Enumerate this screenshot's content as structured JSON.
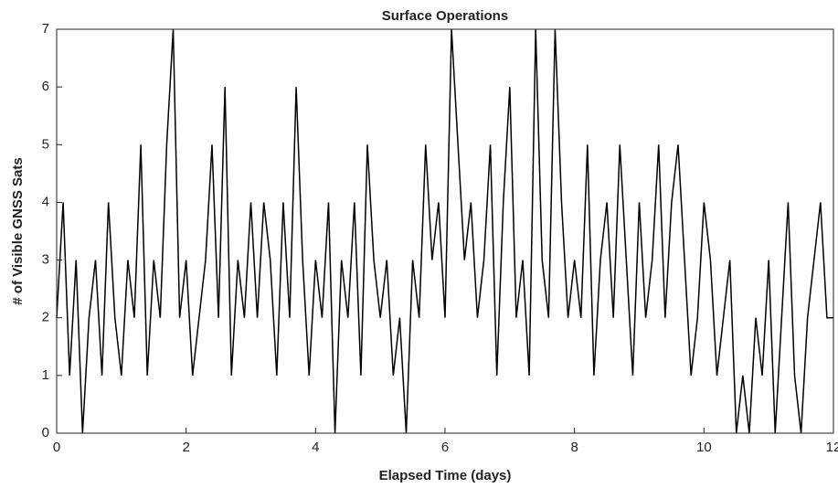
{
  "chart_data": {
    "type": "line",
    "title": "Surface Operations",
    "xlabel": "Elapsed Time (days)",
    "ylabel": "# of Visible GNSS Sats",
    "x": [
      0,
      0.1,
      0.2,
      0.3,
      0.4,
      0.5,
      0.6,
      0.7,
      0.8,
      0.9,
      1,
      1.1,
      1.2,
      1.3,
      1.4,
      1.5,
      1.6,
      1.7,
      1.8,
      1.9,
      2,
      2.1,
      2.2,
      2.3,
      2.4,
      2.5,
      2.6,
      2.7,
      2.8,
      2.9,
      3,
      3.1,
      3.2,
      3.3,
      3.4,
      3.5,
      3.6,
      3.7,
      3.8,
      3.9,
      4,
      4.1,
      4.2,
      4.3,
      4.4,
      4.5,
      4.6,
      4.7,
      4.8,
      4.9,
      5,
      5.1,
      5.2,
      5.3,
      5.4,
      5.5,
      5.6,
      5.7,
      5.8,
      5.9,
      6,
      6.1,
      6.2,
      6.3,
      6.4,
      6.5,
      6.6,
      6.7,
      6.8,
      6.9,
      7,
      7.1,
      7.2,
      7.3,
      7.4,
      7.5,
      7.6,
      7.7,
      7.8,
      7.9,
      8,
      8.1,
      8.2,
      8.3,
      8.4,
      8.5,
      8.6,
      8.7,
      8.8,
      8.9,
      9,
      9.1,
      9.2,
      9.3,
      9.4,
      9.5,
      9.6,
      9.7,
      9.8,
      9.9,
      10,
      10.1,
      10.2,
      10.3,
      10.4,
      10.5,
      10.6,
      10.7,
      10.8,
      10.9,
      11,
      11.1,
      11.2,
      11.3,
      11.4,
      11.5,
      11.6,
      11.7,
      11.8,
      11.9,
      12
    ],
    "series": [
      {
        "name": "Visible GNSS Sats",
        "color": "#000000",
        "values": [
          2,
          4,
          1,
          3,
          0,
          2,
          3,
          1,
          4,
          2,
          1,
          3,
          2,
          5,
          1,
          3,
          2,
          5,
          7,
          2,
          3,
          1,
          2,
          3,
          5,
          2,
          6,
          1,
          3,
          2,
          4,
          2,
          4,
          3,
          1,
          4,
          2,
          6,
          3,
          1,
          3,
          2,
          4,
          0,
          3,
          2,
          4,
          1,
          5,
          3,
          2,
          3,
          1,
          2,
          0,
          3,
          2,
          5,
          3,
          4,
          2,
          7,
          5,
          3,
          4,
          2,
          3,
          5,
          1,
          4,
          6,
          2,
          3,
          1,
          7,
          3,
          2,
          7,
          4,
          2,
          3,
          2,
          5,
          1,
          3,
          4,
          2,
          5,
          3,
          1,
          4,
          2,
          3,
          5,
          2,
          4,
          5,
          3,
          1,
          2,
          4,
          3,
          1,
          2,
          3,
          0,
          1,
          0,
          2,
          1,
          3,
          0,
          2,
          4,
          1,
          0,
          2,
          3,
          4,
          2,
          2
        ]
      }
    ],
    "xlim": [
      0,
      12
    ],
    "xticks": [
      0,
      2,
      4,
      6,
      8,
      10,
      12
    ],
    "ylim": [
      0,
      7
    ],
    "yticks": [
      0,
      1,
      2,
      3,
      4,
      5,
      6,
      7
    ]
  }
}
